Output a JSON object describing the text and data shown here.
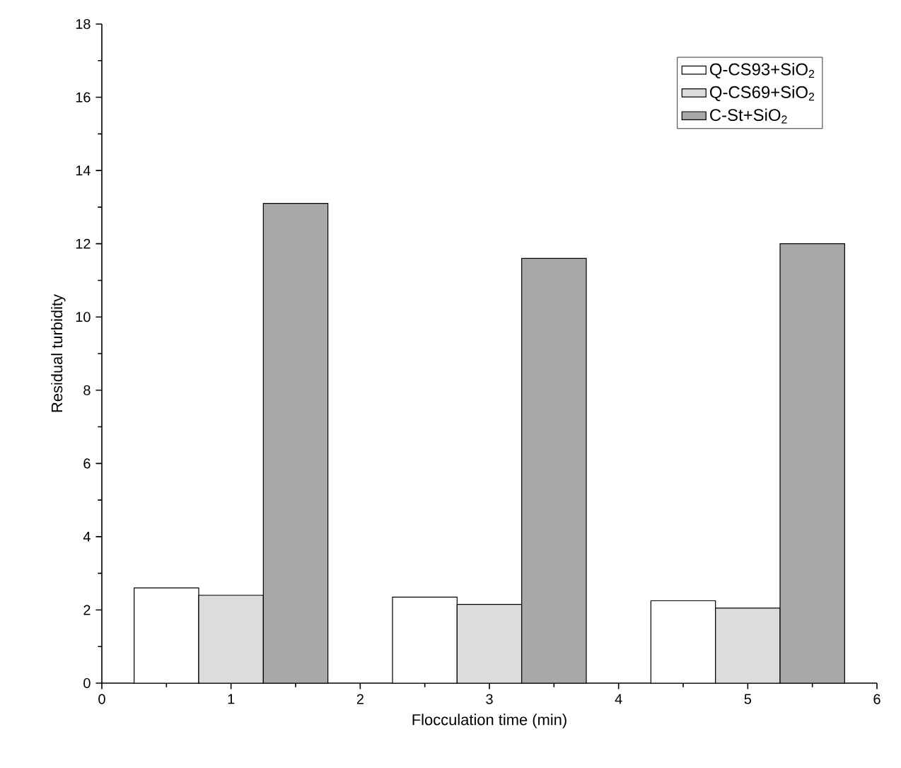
{
  "chart_data": {
    "type": "bar",
    "xlabel": "Flocculation time (min)",
    "ylabel": "Residual turbidity",
    "xlim": [
      0,
      6
    ],
    "xticks": [
      0,
      1,
      2,
      3,
      4,
      5,
      6
    ],
    "ylim": [
      0,
      18
    ],
    "yticks": [
      0,
      2,
      4,
      6,
      8,
      10,
      12,
      14,
      16,
      18
    ],
    "legend": "top right",
    "series": [
      {
        "name": "Q-CS93+SiO$_{2}$",
        "color": "#ffffff",
        "x": [
          0.5,
          2.5,
          4.5
        ],
        "values": [
          2.6,
          2.35,
          2.25
        ]
      },
      {
        "name": "Q-CS69+SiO$_{2}$",
        "color": "#dcdcdc",
        "x": [
          1,
          3,
          5
        ],
        "values": [
          2.4,
          2.15,
          2.05
        ]
      },
      {
        "name": "C-St+SiO$_{2}$",
        "color": "#a8a8a8",
        "x": [
          1.5,
          3.5,
          5.5
        ],
        "values": [
          13.1,
          11.6,
          12.0
        ]
      }
    ]
  }
}
